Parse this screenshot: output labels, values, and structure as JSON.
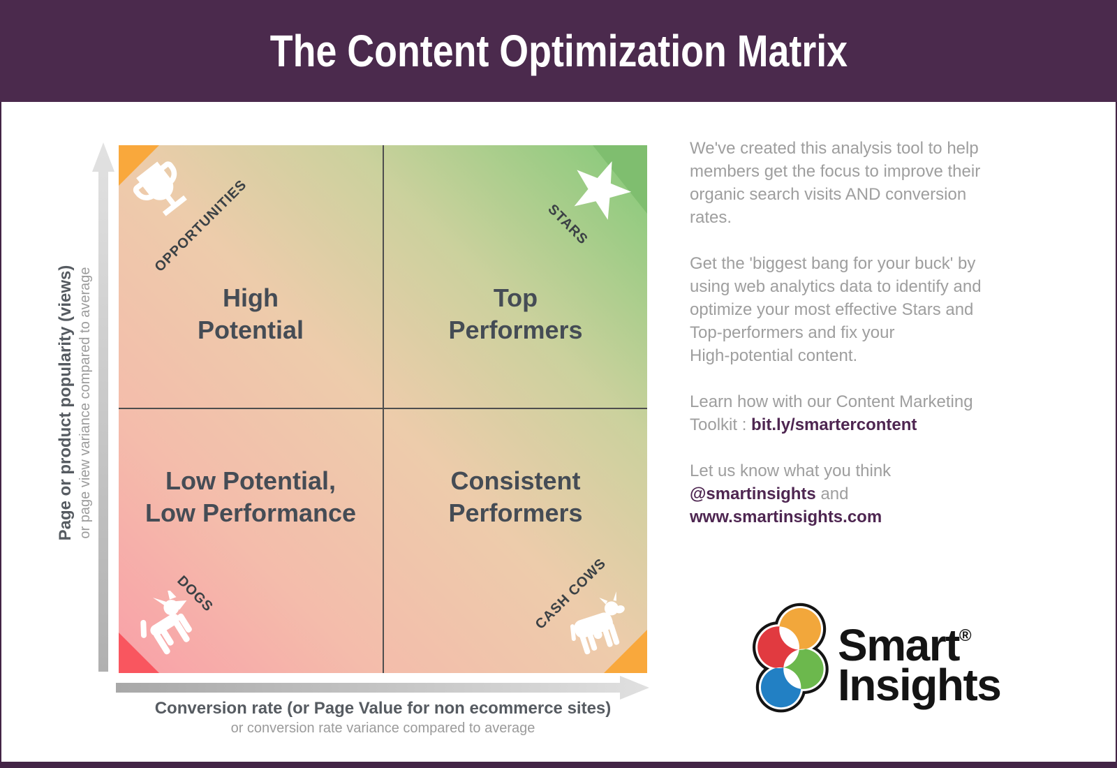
{
  "header": {
    "title": "The Content Optimization Matrix",
    "bg_color": "#4b2a4d",
    "text_color": "#ffffff"
  },
  "matrix": {
    "grid": {
      "rows": 2,
      "cols": 2,
      "line_color": "#4e4e4e"
    },
    "gradient": {
      "direction": "bottom-left to top-right",
      "stops": [
        "#f9a0a8",
        "#f4bcab",
        "#edccab",
        "#cbd19d",
        "#83c978"
      ]
    },
    "quadrants": [
      {
        "position": "top-left",
        "title_lines": [
          "High",
          "Potential"
        ],
        "corner_label": "OPPORTUNITIES",
        "icon": "trophy-icon",
        "corner_color": "#f9a83c"
      },
      {
        "position": "top-right",
        "title_lines": [
          "Top",
          "Performers"
        ],
        "corner_label": "STARS",
        "icon": "star-icon",
        "corner_color": "#7fbe6f"
      },
      {
        "position": "bottom-left",
        "title_lines": [
          "Low Potential,",
          "Low Performance"
        ],
        "corner_label": "DOGS",
        "icon": "dog-icon",
        "corner_color": "#f9565f"
      },
      {
        "position": "bottom-right",
        "title_lines": [
          "Consistent",
          "Performers"
        ],
        "corner_label": "CASH COWS",
        "icon": "cow-icon",
        "corner_color": "#f9a83c"
      }
    ]
  },
  "axes": {
    "y": {
      "label": "Page or product popularity (views)",
      "sublabel": "or page view variance compared to average"
    },
    "x": {
      "label": "Conversion rate (or Page Value for non ecommerce sites)",
      "sublabel": "or conversion rate variance compared to average"
    }
  },
  "sidebar": {
    "text_color": "#9e9e9e",
    "link_color": "#4e2651",
    "paragraphs": [
      {
        "lines": [
          [
            {
              "t": "We've created this analysis tool to help"
            }
          ],
          [
            {
              "t": "members get the focus to improve their"
            }
          ],
          [
            {
              "t": "organic search visits AND conversion"
            }
          ],
          [
            {
              "t": "rates."
            }
          ]
        ]
      },
      {
        "lines": [
          [
            {
              "t": "Get the 'biggest bang for your buck' by"
            }
          ],
          [
            {
              "t": "using web analytics data to identify and"
            }
          ],
          [
            {
              "t": "optimize your most effective Stars and"
            }
          ],
          [
            {
              "t": "Top-performers and fix your"
            }
          ],
          [
            {
              "t": "High-potential content."
            }
          ]
        ]
      },
      {
        "lines": [
          [
            {
              "t": "Learn how with our Content Marketing"
            }
          ],
          [
            {
              "t": "Toolkit : "
            },
            {
              "t": "bit.ly/smartercontent",
              "link": true,
              "name": "toolkit-link"
            }
          ]
        ]
      },
      {
        "lines": [
          [
            {
              "t": "Let us know what you think"
            }
          ],
          [
            {
              "t": "@smartinsights",
              "link": true,
              "name": "twitter-link"
            },
            {
              "t": " and"
            }
          ],
          [
            {
              "t": "www.smartinsights.com",
              "link": true,
              "name": "website-link"
            }
          ]
        ]
      }
    ]
  },
  "logo": {
    "line1": "Smart",
    "line2": "Insights",
    "registered": "®",
    "colors": {
      "orange": "#f2a73b",
      "red": "#e13a40",
      "green": "#6cb84d",
      "blue": "#2280c4",
      "outline": "#141414"
    }
  }
}
